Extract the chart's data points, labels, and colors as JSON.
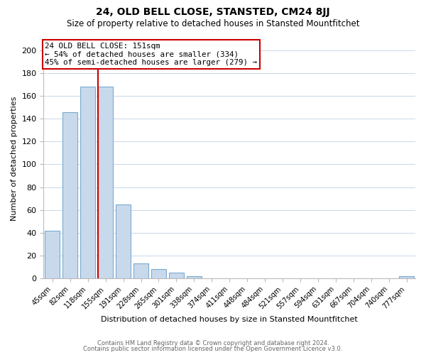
{
  "title1": "24, OLD BELL CLOSE, STANSTED, CM24 8JJ",
  "title2": "Size of property relative to detached houses in Stansted Mountfitchet",
  "xlabel": "Distribution of detached houses by size in Stansted Mountfitchet",
  "ylabel": "Number of detached properties",
  "bin_labels": [
    "45sqm",
    "82sqm",
    "118sqm",
    "155sqm",
    "191sqm",
    "228sqm",
    "265sqm",
    "301sqm",
    "338sqm",
    "374sqm",
    "411sqm",
    "448sqm",
    "484sqm",
    "521sqm",
    "557sqm",
    "594sqm",
    "631sqm",
    "667sqm",
    "704sqm",
    "740sqm",
    "777sqm"
  ],
  "bar_values": [
    42,
    146,
    168,
    168,
    65,
    13,
    8,
    5,
    2,
    0,
    0,
    0,
    0,
    0,
    0,
    0,
    0,
    0,
    0,
    0,
    2
  ],
  "bar_color": "#c9d9ec",
  "bar_edge_color": "#7aaad0",
  "subject_line_color": "#cc0000",
  "annotation_title": "24 OLD BELL CLOSE: 151sqm",
  "annotation_line1": "← 54% of detached houses are smaller (334)",
  "annotation_line2": "45% of semi-detached houses are larger (279) →",
  "annotation_box_color": "#ffffff",
  "annotation_box_edge": "#cc0000",
  "ylim": [
    0,
    210
  ],
  "yticks": [
    0,
    20,
    40,
    60,
    80,
    100,
    120,
    140,
    160,
    180,
    200
  ],
  "footer1": "Contains HM Land Registry data © Crown copyright and database right 2024.",
  "footer2": "Contains public sector information licensed under the Open Government Licence v3.0.",
  "background_color": "#ffffff",
  "grid_color": "#c8d8e8"
}
